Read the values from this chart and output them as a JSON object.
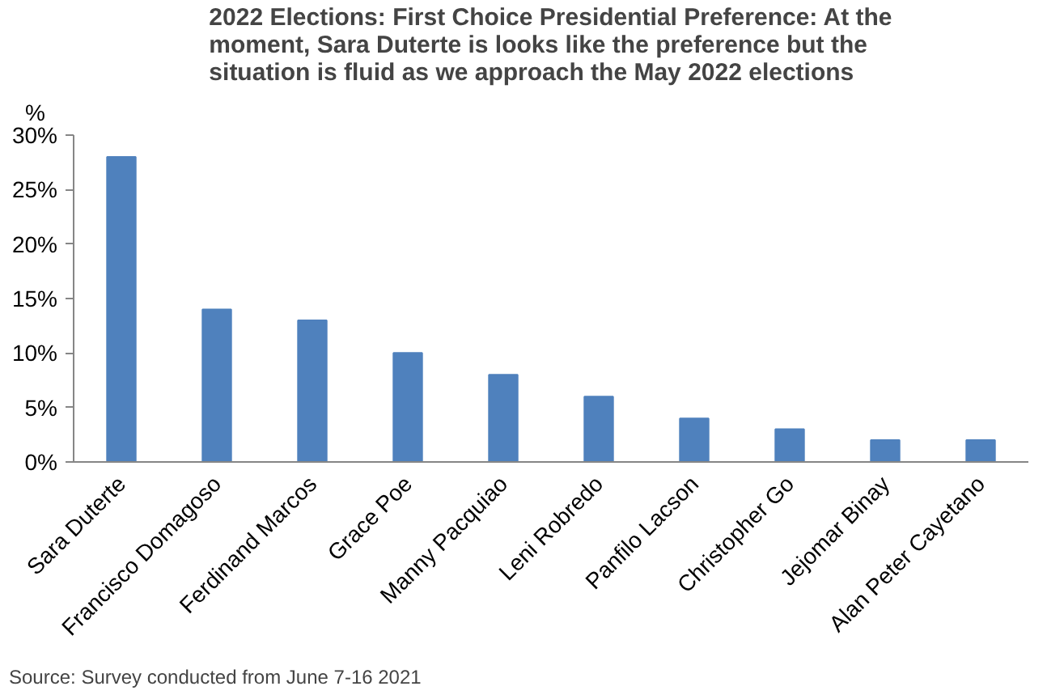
{
  "chart_data": {
    "type": "bar",
    "title": "2022 Elections: First Choice Presidential Preference: At the moment, Sara Duterte is looks like the preference but the situation is fluid as we approach the May 2022 elections",
    "ylabel": "%",
    "categories": [
      "Sara Duterte",
      "Francisco Domagoso",
      "Ferdinand Marcos",
      "Grace Poe",
      "Manny Pacquiao",
      "Leni Robredo",
      "Panfilo Lacson",
      "Christopher Go",
      "Jejomar Binay",
      "Alan Peter Cayetano"
    ],
    "values": [
      28,
      14,
      13,
      10,
      8,
      6,
      4,
      3,
      2,
      2
    ],
    "color": "#4f81bd",
    "ylim": [
      0,
      30
    ],
    "yticks": [
      {
        "value": 0,
        "label": "0%"
      },
      {
        "value": 5,
        "label": "5%"
      },
      {
        "value": 10,
        "label": "10%"
      },
      {
        "value": 15,
        "label": "15%"
      },
      {
        "value": 20,
        "label": "20%"
      },
      {
        "value": 25,
        "label": "25%"
      },
      {
        "value": 30,
        "label": "30%"
      }
    ],
    "grid": false,
    "annotations": [
      "Source: Survey conducted from June 7-16 2021"
    ]
  }
}
